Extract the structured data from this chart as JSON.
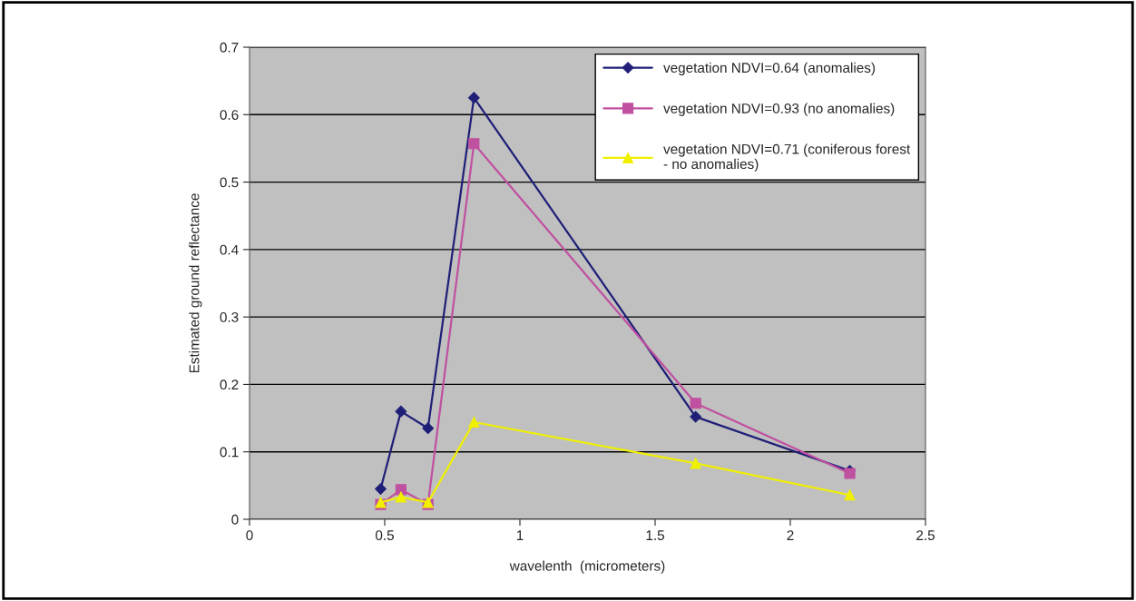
{
  "chart_data": {
    "type": "line",
    "xlabel": "wavelenth  (micrometers)",
    "ylabel": "Estimated ground reflectance",
    "x": [
      0.485,
      0.56,
      0.66,
      0.83,
      1.65,
      2.22
    ],
    "series": [
      {
        "name": "vegetation NDVI=0.64 (anomalies)",
        "color": "#1f1f78",
        "marker": "diamond",
        "values": [
          0.045,
          0.16,
          0.135,
          0.625,
          0.152,
          0.072
        ]
      },
      {
        "name": "vegetation NDVI=0.93 (no anomalies)",
        "color": "#c050a0",
        "marker": "square",
        "values": [
          0.022,
          0.044,
          0.022,
          0.557,
          0.172,
          0.068
        ]
      },
      {
        "name": "vegetation NDVI=0.71 (coniferous forest\n- no anomalies)",
        "color": "#f0f000",
        "marker": "triangle",
        "values": [
          0.025,
          0.033,
          0.025,
          0.144,
          0.083,
          0.036
        ]
      }
    ],
    "xlim": [
      0,
      2.5
    ],
    "xticks": [
      0,
      0.5,
      1,
      1.5,
      2,
      2.5
    ],
    "ylim": [
      0,
      0.7
    ],
    "yticks": [
      0,
      0.1,
      0.2,
      0.3,
      0.4,
      0.5,
      0.6,
      0.7
    ],
    "grid": "y",
    "legend": "top right",
    "line_style": "solid"
  }
}
